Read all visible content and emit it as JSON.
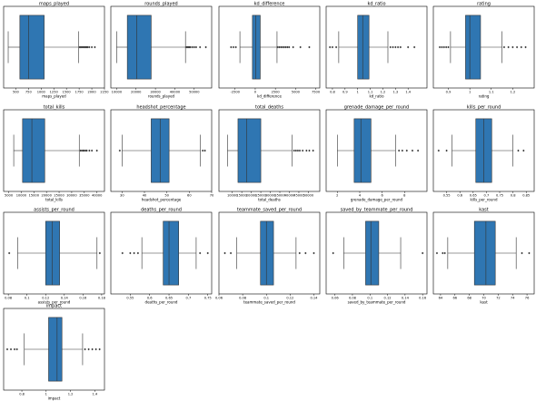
{
  "chart_data": [
    {
      "type": "box",
      "title": "maps_played",
      "xlabel": "maps_played",
      "xlim": [
        260,
        2250
      ],
      "xticks": [
        500,
        750,
        1000,
        1250,
        1500,
        1750,
        2000,
        2250
      ],
      "whislo": 350,
      "q1": 580,
      "median": 750,
      "q3": 1060,
      "whishi": 1740,
      "fliers": [
        1760,
        1780,
        1800,
        1820,
        1840,
        1860,
        1880,
        1900,
        1920,
        1950,
        2000,
        2060
      ]
    },
    {
      "type": "box",
      "title": "rounds_played",
      "xlabel": "rounds_played",
      "xlim": [
        7000,
        59000
      ],
      "xticks": [
        10000,
        20000,
        30000,
        40000,
        50000
      ],
      "whislo": 10000,
      "q1": 15500,
      "median": 20300,
      "q3": 27800,
      "whishi": 45500,
      "fliers": [
        46000,
        46500,
        47000,
        47500,
        48000,
        49000,
        50000,
        51000,
        53000,
        56000
      ]
    },
    {
      "type": "box",
      "title": "kd_difference",
      "xlabel": "kd_difference",
      "xlim": [
        -4500,
        8000
      ],
      "xticks": [
        -2500,
        0,
        2500,
        5000,
        7500
      ],
      "whislo": -1900,
      "q1": -350,
      "median": 80,
      "q3": 620,
      "whishi": 2700,
      "fliers": [
        -3000,
        -2700,
        -2400,
        2800,
        3000,
        3200,
        3400,
        3600,
        3800,
        4000,
        4200,
        4700,
        5600,
        6700
      ]
    },
    {
      "type": "box",
      "title": "kd_ratio",
      "xlabel": "kd_ratio",
      "xlim": [
        0.75,
        1.55
      ],
      "xticks": [
        0.8,
        0.9,
        1.0,
        1.1,
        1.2,
        1.3,
        1.4
      ],
      "whislo": 0.85,
      "q1": 1.0,
      "median": 1.04,
      "q3": 1.09,
      "whishi": 1.24,
      "fliers": [
        0.78,
        0.8,
        0.83,
        1.26,
        1.28,
        1.3,
        1.32,
        1.34,
        1.4,
        1.45
      ]
    },
    {
      "type": "box",
      "title": "rating",
      "xlabel": "rating",
      "xlim": [
        0.83,
        1.3
      ],
      "xticks": [
        0.9,
        1.0,
        1.1,
        1.2
      ],
      "whislo": 0.91,
      "q1": 0.98,
      "median": 1.0,
      "q3": 1.05,
      "whishi": 1.15,
      "fliers": [
        0.86,
        0.87,
        0.88,
        0.89,
        0.9,
        1.16,
        1.18,
        1.2,
        1.22,
        1.24,
        1.26
      ]
    },
    {
      "type": "box",
      "title": "total_kills",
      "xlabel": "total_kills",
      "xlim": [
        3000,
        43000
      ],
      "xticks": [
        5000,
        10000,
        15000,
        20000,
        25000,
        30000,
        35000,
        40000
      ],
      "whislo": 7000,
      "q1": 10500,
      "median": 14200,
      "q3": 19300,
      "whishi": 33000,
      "fliers": [
        33500,
        34000,
        34500,
        35000,
        35500,
        36000,
        37000,
        38000,
        40000
      ]
    },
    {
      "type": "box",
      "title": "headshot_percentage",
      "xlabel": "headshot_percentage",
      "xlim": [
        25,
        70
      ],
      "xticks": [
        30,
        40,
        50,
        60,
        70
      ],
      "whislo": 30,
      "q1": 43,
      "median": 47,
      "q3": 51,
      "whishi": 65,
      "fliers": [
        29,
        66,
        67
      ]
    },
    {
      "type": "box",
      "title": "total_deaths",
      "xlabel": "total_deaths",
      "xlim": [
        3000,
        56000
      ],
      "xticks": [
        10000,
        15000,
        20000,
        25000,
        30000,
        35000,
        40000,
        45000,
        50000
      ],
      "whislo": 7500,
      "q1": 13000,
      "median": 17500,
      "q3": 25000,
      "whishi": 41500,
      "fliers": [
        42500,
        43500,
        44500,
        45500,
        47000,
        49000,
        50500,
        52500
      ]
    },
    {
      "type": "box",
      "title": "grenade_damage_per_round",
      "xlabel": "grenade_damage_per_round",
      "xlim": [
        1,
        10
      ],
      "xticks": [
        2,
        4,
        6,
        8
      ],
      "whislo": 2.0,
      "q1": 3.5,
      "median": 4.1,
      "q3": 5.0,
      "whishi": 7.2,
      "fliers": [
        7.5,
        7.8,
        8.2,
        8.7,
        9.2
      ]
    },
    {
      "type": "box",
      "title": "kills_per_round",
      "xlabel": "kills_per_round",
      "xlim": [
        0.5,
        0.88
      ],
      "xticks": [
        0.55,
        0.6,
        0.65,
        0.7,
        0.75,
        0.8,
        0.85
      ],
      "whislo": 0.57,
      "q1": 0.66,
      "median": 0.69,
      "q3": 0.72,
      "whishi": 0.8,
      "fliers": [
        0.52,
        0.55,
        0.82,
        0.84
      ]
    },
    {
      "type": "box",
      "title": "assists_per_round",
      "xlabel": "assists_per_round",
      "xlim": [
        0.075,
        0.183
      ],
      "xticks": [
        0.08,
        0.1,
        0.12,
        0.14,
        0.16,
        0.18
      ],
      "whislo": 0.09,
      "q1": 0.12,
      "median": 0.127,
      "q3": 0.135,
      "whishi": 0.175,
      "fliers": [
        0.081,
        0.178
      ]
    },
    {
      "type": "box",
      "title": "deaths_per_round",
      "xlabel": "deaths_per_round",
      "xlim": [
        0.5,
        0.76
      ],
      "xticks": [
        0.55,
        0.6,
        0.65,
        0.7,
        0.75
      ],
      "whislo": 0.58,
      "q1": 0.635,
      "median": 0.65,
      "q3": 0.675,
      "whishi": 0.72,
      "fliers": [
        0.53,
        0.55,
        0.56,
        0.57,
        0.73,
        0.75
      ]
    },
    {
      "type": "box",
      "title": "teammate_saved_per_round",
      "xlabel": "teammate_saved_per_round",
      "xlim": [
        0.06,
        0.145
      ],
      "xticks": [
        0.06,
        0.08,
        0.1,
        0.12,
        0.14
      ],
      "whislo": 0.075,
      "q1": 0.095,
      "median": 0.1,
      "q3": 0.106,
      "whishi": 0.125,
      "fliers": [
        0.065,
        0.07,
        0.128,
        0.133,
        0.14
      ]
    },
    {
      "type": "box",
      "title": "saved_by_teammate_per_round",
      "xlabel": "saved_by_teammate_per_round",
      "xlim": [
        0.05,
        0.165
      ],
      "xticks": [
        0.06,
        0.08,
        0.1,
        0.12,
        0.14,
        0.16
      ],
      "whislo": 0.07,
      "q1": 0.095,
      "median": 0.101,
      "q3": 0.11,
      "whishi": 0.135,
      "fliers": [
        0.058,
        0.16
      ]
    },
    {
      "type": "box",
      "title": "kast",
      "xlabel": "kast",
      "xlim": [
        63,
        77
      ],
      "xticks": [
        64,
        66,
        68,
        70,
        72,
        74,
        76
      ],
      "whislo": 65,
      "q1": 68.7,
      "median": 70.3,
      "q3": 71.6,
      "whishi": 74.5,
      "fliers": [
        63.5,
        64.3,
        64.6,
        75.3,
        76.3
      ]
    },
    {
      "type": "box",
      "title": "impact",
      "xlabel": "impact",
      "xlim": [
        0.65,
        1.48
      ],
      "xticks": [
        0.8,
        1.0,
        1.2,
        1.4
      ],
      "whislo": 0.82,
      "q1": 1.02,
      "median": 1.09,
      "q3": 1.13,
      "whishi": 1.3,
      "fliers": [
        0.68,
        0.71,
        0.74,
        0.76,
        1.32,
        1.35,
        1.38,
        1.41,
        1.44
      ]
    }
  ],
  "style": {
    "box_color": "#2f76b2",
    "line_color": "#333333"
  }
}
